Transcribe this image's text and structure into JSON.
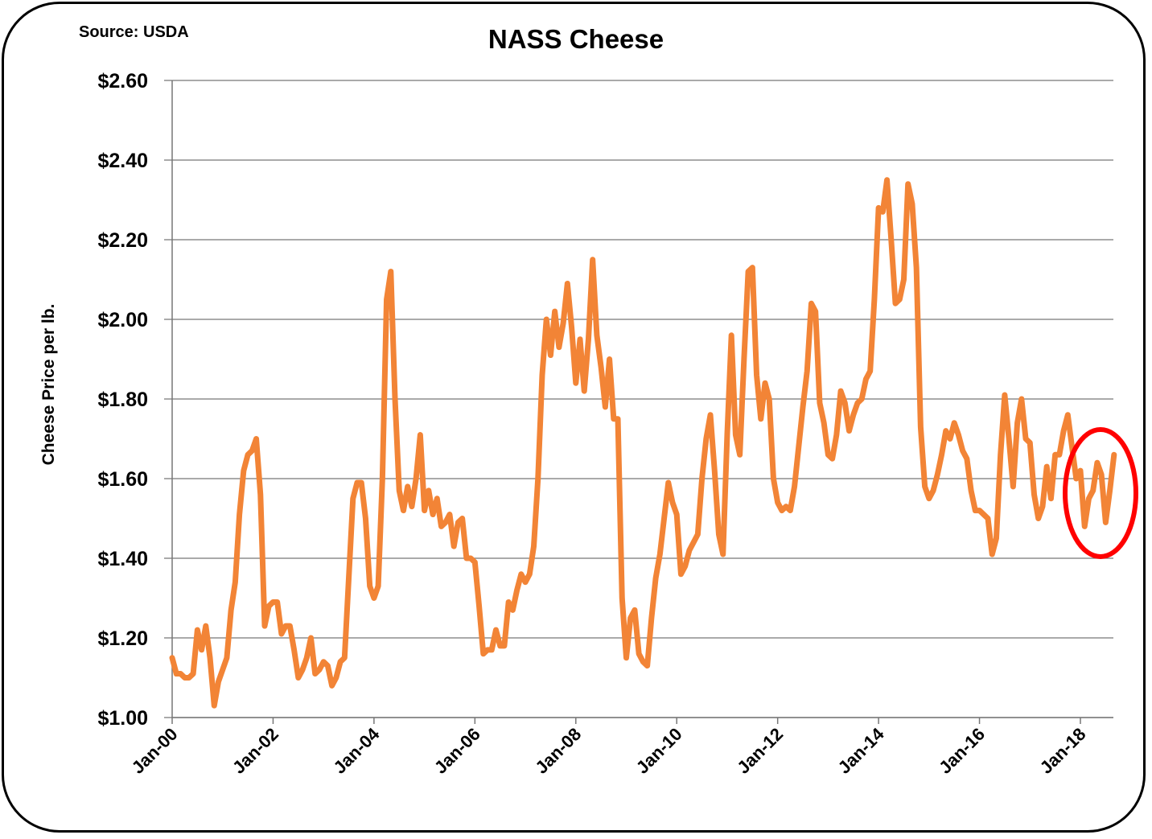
{
  "chart_data": {
    "type": "line",
    "title": "NASS Cheese",
    "source_note": "Source: USDA",
    "ylabel": "Cheese Price per lb.",
    "xlabel": "",
    "ylim": [
      1.0,
      2.6
    ],
    "y_ticks": [
      "$1.00",
      "$1.20",
      "$1.40",
      "$1.60",
      "$1.80",
      "$2.00",
      "$2.20",
      "$2.40",
      "$2.60"
    ],
    "y_tick_values": [
      1.0,
      1.2,
      1.4,
      1.6,
      1.8,
      2.0,
      2.2,
      2.4,
      2.6
    ],
    "x_ticks": [
      "Jan-00",
      "Jan-02",
      "Jan-04",
      "Jan-06",
      "Jan-08",
      "Jan-10",
      "Jan-12",
      "Jan-14",
      "Jan-16",
      "Jan-18"
    ],
    "x_tick_years": [
      2000,
      2002,
      2004,
      2006,
      2008,
      2010,
      2012,
      2014,
      2016,
      2018
    ],
    "grid": "horizontal",
    "frequency": "monthly",
    "series_color": "#F28436",
    "annotation": {
      "shape": "ellipse",
      "color": "#FF0000",
      "marks": "2018 values"
    },
    "values_by_year": {
      "2000": [
        1.15,
        1.11,
        1.11,
        1.1,
        1.1,
        1.11,
        1.22,
        1.17,
        1.23,
        1.15,
        1.03,
        1.09
      ],
      "2001": [
        1.12,
        1.15,
        1.27,
        1.34,
        1.51,
        1.62,
        1.66,
        1.67,
        1.7,
        1.56,
        1.23,
        1.28
      ],
      "2002": [
        1.29,
        1.29,
        1.21,
        1.23,
        1.23,
        1.17,
        1.1,
        1.12,
        1.15,
        1.2,
        1.11,
        1.12
      ],
      "2003": [
        1.14,
        1.13,
        1.08,
        1.1,
        1.14,
        1.15,
        1.35,
        1.55,
        1.59,
        1.59,
        1.5,
        1.33
      ],
      "2004": [
        1.3,
        1.33,
        1.6,
        2.05,
        2.12,
        1.8,
        1.57,
        1.52,
        1.58,
        1.53,
        1.6,
        1.71
      ],
      "2005": [
        1.52,
        1.57,
        1.51,
        1.55,
        1.48,
        1.49,
        1.51,
        1.43,
        1.49,
        1.5,
        1.4,
        1.4
      ],
      "2006": [
        1.39,
        1.28,
        1.16,
        1.17,
        1.17,
        1.22,
        1.18,
        1.18,
        1.29,
        1.27,
        1.32,
        1.36
      ],
      "2007": [
        1.34,
        1.36,
        1.43,
        1.6,
        1.86,
        2.0,
        1.91,
        2.02,
        1.93,
        1.99,
        2.09,
        1.98
      ],
      "2008": [
        1.84,
        1.95,
        1.82,
        1.95,
        2.15,
        1.96,
        1.88,
        1.78,
        1.9,
        1.75,
        1.75,
        1.3
      ],
      "2009": [
        1.15,
        1.25,
        1.27,
        1.16,
        1.14,
        1.13,
        1.25,
        1.35,
        1.41,
        1.5,
        1.59,
        1.54
      ],
      "2010": [
        1.51,
        1.36,
        1.38,
        1.42,
        1.44,
        1.46,
        1.6,
        1.7,
        1.76,
        1.62,
        1.46,
        1.41
      ],
      "2011": [
        1.71,
        1.96,
        1.71,
        1.66,
        1.9,
        2.12,
        2.13,
        1.86,
        1.75,
        1.84,
        1.8,
        1.6
      ],
      "2012": [
        1.54,
        1.52,
        1.53,
        1.52,
        1.58,
        1.68,
        1.78,
        1.87,
        2.04,
        2.02,
        1.79,
        1.74
      ],
      "2013": [
        1.66,
        1.65,
        1.71,
        1.82,
        1.79,
        1.72,
        1.76,
        1.79,
        1.8,
        1.85,
        1.87,
        2.05
      ],
      "2014": [
        2.28,
        2.27,
        2.35,
        2.2,
        2.04,
        2.05,
        2.1,
        2.34,
        2.29,
        2.13,
        1.73,
        1.58
      ],
      "2015": [
        1.55,
        1.57,
        1.61,
        1.66,
        1.72,
        1.7,
        1.74,
        1.71,
        1.67,
        1.65,
        1.57,
        1.52
      ],
      "2016": [
        1.52,
        1.51,
        1.5,
        1.41,
        1.45,
        1.66,
        1.81,
        1.7,
        1.58,
        1.74,
        1.8,
        1.7
      ],
      "2017": [
        1.69,
        1.56,
        1.5,
        1.53,
        1.63,
        1.55,
        1.66,
        1.66,
        1.72,
        1.76,
        1.68,
        1.6
      ],
      "2018": [
        1.62,
        1.48,
        1.55,
        1.57,
        1.64,
        1.61,
        1.49,
        1.57,
        1.66
      ]
    }
  }
}
